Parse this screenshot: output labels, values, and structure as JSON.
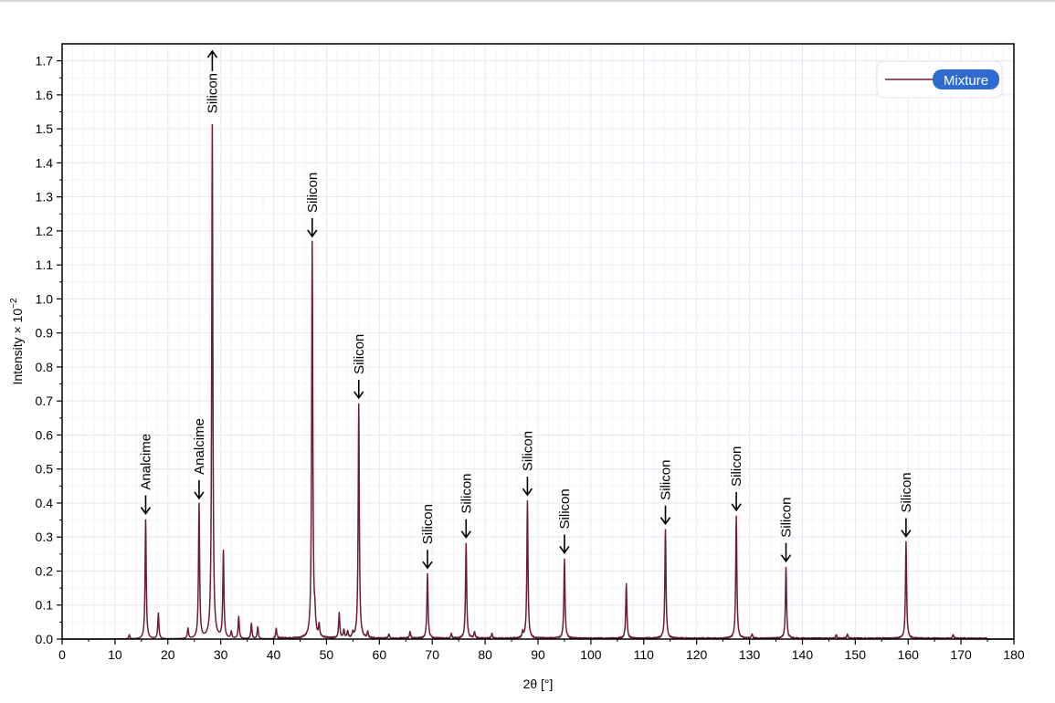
{
  "colors": {
    "series": "#6b1d38",
    "legend_badge": "#2d6bd3",
    "grid_major": "#e6e8f2",
    "grid_minor": "#f3f4f9",
    "axis": "#000000"
  },
  "chart_data": {
    "type": "line",
    "xlabel": "2θ [°]",
    "ylabel_main": "Intensity × 10",
    "ylabel_exp": "−2",
    "xlim": [
      0,
      180
    ],
    "ylim": [
      0,
      1.75
    ],
    "xticks": [
      0,
      10,
      20,
      30,
      40,
      50,
      60,
      70,
      80,
      90,
      100,
      110,
      120,
      130,
      140,
      150,
      160,
      170,
      180
    ],
    "xtick_labels": [
      "0",
      "10",
      "20",
      "30",
      "40",
      "50",
      "60",
      "70",
      "80",
      "90",
      "100",
      "110",
      "120",
      "130",
      "140",
      "150",
      "160",
      "170",
      "180"
    ],
    "yticks": [
      0,
      0.1,
      0.2,
      0.3,
      0.4,
      0.5,
      0.6,
      0.7,
      0.8,
      0.9,
      1.0,
      1.1,
      1.2,
      1.3,
      1.4,
      1.5,
      1.6,
      1.7
    ],
    "ytick_labels": [
      "0.0",
      "0.1",
      "0.2",
      "0.3",
      "0.4",
      "0.5",
      "0.6",
      "0.7",
      "0.8",
      "0.9",
      "1.0",
      "1.1",
      "1.2",
      "1.3",
      "1.4",
      "1.5",
      "1.6",
      "1.7"
    ],
    "grid": true,
    "legend_position": "top-right",
    "series": [
      {
        "name": "Mixture",
        "peaks": [
          [
            12.7,
            0.012
          ],
          [
            15.8,
            0.35
          ],
          [
            18.2,
            0.075
          ],
          [
            23.8,
            0.03
          ],
          [
            25.9,
            0.395
          ],
          [
            28.4,
            1.51
          ],
          [
            30.5,
            0.255
          ],
          [
            32.0,
            0.02
          ],
          [
            33.4,
            0.065
          ],
          [
            35.8,
            0.045
          ],
          [
            37.0,
            0.035
          ],
          [
            40.5,
            0.028
          ],
          [
            47.3,
            1.165
          ],
          [
            47.8,
            0.05
          ],
          [
            48.6,
            0.035
          ],
          [
            52.4,
            0.075
          ],
          [
            53.3,
            0.025
          ],
          [
            54.0,
            0.02
          ],
          [
            55.0,
            0.015
          ],
          [
            56.1,
            0.69
          ],
          [
            57.8,
            0.018
          ],
          [
            61.8,
            0.012
          ],
          [
            65.8,
            0.02
          ],
          [
            69.1,
            0.19
          ],
          [
            73.6,
            0.015
          ],
          [
            76.4,
            0.28
          ],
          [
            78.0,
            0.02
          ],
          [
            81.3,
            0.015
          ],
          [
            87.1,
            0.018
          ],
          [
            88.0,
            0.405
          ],
          [
            95.0,
            0.235
          ],
          [
            106.7,
            0.16
          ],
          [
            114.1,
            0.32
          ],
          [
            127.5,
            0.36
          ],
          [
            130.5,
            0.012
          ],
          [
            136.9,
            0.21
          ],
          [
            146.4,
            0.01
          ],
          [
            148.5,
            0.012
          ],
          [
            159.6,
            0.283
          ],
          [
            168.5,
            0.01
          ]
        ]
      }
    ],
    "annotations": [
      {
        "text": "Analcime",
        "x": 15.8,
        "y": 0.35,
        "direction": "down"
      },
      {
        "text": "Analcime",
        "x": 25.9,
        "y": 0.395,
        "direction": "down"
      },
      {
        "text": "Silicon",
        "x": 28.4,
        "y": 1.74,
        "direction": "up"
      },
      {
        "text": "Silicon",
        "x": 47.3,
        "y": 1.165,
        "direction": "down"
      },
      {
        "text": "Silicon",
        "x": 56.1,
        "y": 0.69,
        "direction": "down"
      },
      {
        "text": "Silicon",
        "x": 69.1,
        "y": 0.19,
        "direction": "down"
      },
      {
        "text": "Silicon",
        "x": 76.4,
        "y": 0.28,
        "direction": "down"
      },
      {
        "text": "Silicon",
        "x": 88.0,
        "y": 0.405,
        "direction": "down"
      },
      {
        "text": "Silicon",
        "x": 95.0,
        "y": 0.235,
        "direction": "down"
      },
      {
        "text": "Silicon",
        "x": 114.1,
        "y": 0.32,
        "direction": "down"
      },
      {
        "text": "Silicon",
        "x": 127.5,
        "y": 0.36,
        "direction": "down"
      },
      {
        "text": "Silicon",
        "x": 136.9,
        "y": 0.21,
        "direction": "down"
      },
      {
        "text": "Silicon",
        "x": 159.6,
        "y": 0.283,
        "direction": "down"
      }
    ]
  }
}
